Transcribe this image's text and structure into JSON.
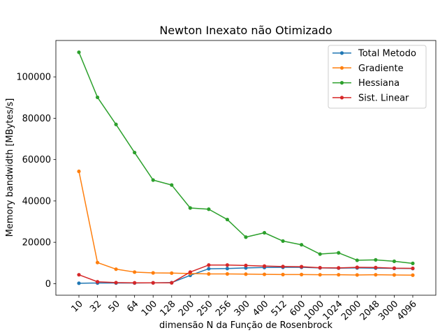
{
  "chart_data": {
    "type": "line",
    "title": "Newton Inexato não Otimizado",
    "xlabel": "dimensão N da Função de Rosenbrock",
    "ylabel": "Memory bandwidth [MBytes/s]",
    "categories": [
      "10",
      "32",
      "50",
      "64",
      "100",
      "128",
      "200",
      "250",
      "256",
      "300",
      "400",
      "512",
      "600",
      "1000",
      "1024",
      "2000",
      "2048",
      "3000",
      "4096"
    ],
    "yticks": [
      0,
      20000,
      40000,
      60000,
      80000,
      100000
    ],
    "ylim": [
      -5600,
      117600
    ],
    "grid": false,
    "legend_position": "top-right",
    "series": [
      {
        "name": "Total Metodo",
        "color": "#1f77b4",
        "values": [
          200,
          300,
          300,
          300,
          400,
          500,
          4000,
          7200,
          7300,
          7600,
          7800,
          7900,
          7900,
          7600,
          7500,
          7600,
          7500,
          7400,
          7300
        ]
      },
      {
        "name": "Gradiente",
        "color": "#ff7f0e",
        "values": [
          54300,
          10200,
          7000,
          5600,
          5200,
          5100,
          4900,
          4700,
          4700,
          4600,
          4500,
          4400,
          4400,
          4300,
          4300,
          4200,
          4300,
          4200,
          4100
        ]
      },
      {
        "name": "Hessiana",
        "color": "#2ca02c",
        "values": [
          111900,
          90100,
          77000,
          63400,
          50100,
          47700,
          36600,
          36000,
          31000,
          22500,
          24600,
          20600,
          18800,
          14300,
          14900,
          11300,
          11500,
          10800,
          9800
        ]
      },
      {
        "name": "Sist. Linear",
        "color": "#d62728",
        "values": [
          4300,
          900,
          500,
          400,
          400,
          400,
          5600,
          9000,
          9000,
          8800,
          8500,
          8300,
          8200,
          7700,
          7600,
          7900,
          7800,
          7500,
          7400
        ]
      }
    ]
  }
}
